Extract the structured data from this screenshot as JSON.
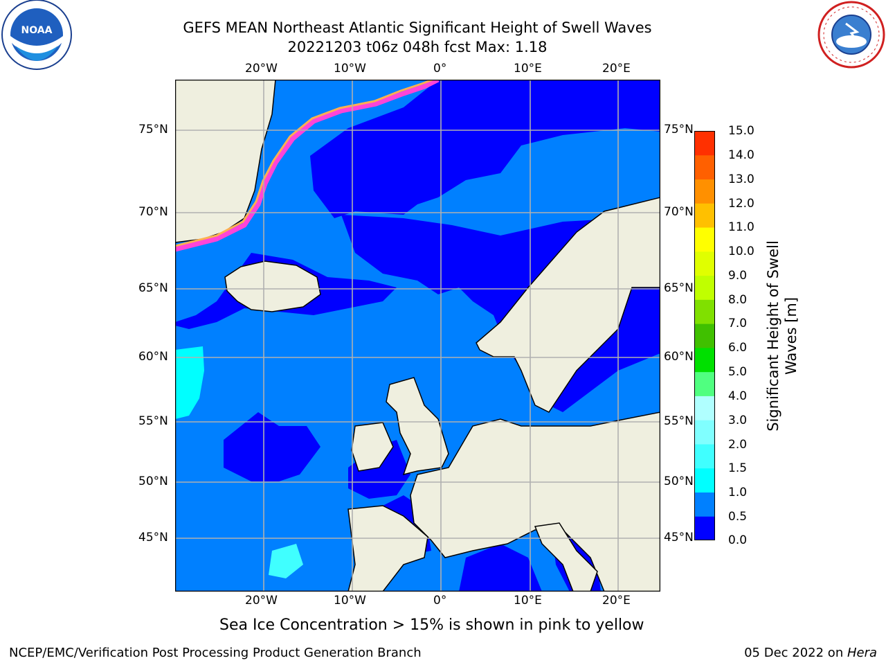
{
  "title": {
    "line1": "GEFS MEAN Northeast Atlantic Significant Height of Swell Waves",
    "line2": "20221203 t06z 048h fcst   Max: 1.18"
  },
  "logos": {
    "left": "noaa-logo-icon",
    "left_text": "NOAA",
    "right": "nws-logo-icon",
    "right_text": "NATIONAL WEATHER SERVICE"
  },
  "axes": {
    "lon_labels": [
      "20°W",
      "10°W",
      "0°",
      "10°E",
      "20°E"
    ],
    "lat_labels": [
      "75°N",
      "70°N",
      "65°N",
      "60°N",
      "55°N",
      "50°N",
      "45°N"
    ]
  },
  "colorbar": {
    "label_line1": "Significant Height of Swell",
    "label_line2": "Waves [m]",
    "ticks": [
      "15.0",
      "14.0",
      "13.0",
      "12.0",
      "11.0",
      "10.0",
      "9.0",
      "8.0",
      "7.0",
      "6.0",
      "5.0",
      "4.0",
      "3.0",
      "2.0",
      "1.5",
      "1.0",
      "0.5",
      "0.0"
    ],
    "colors": [
      "#0000ff",
      "#0080ff",
      "#00ffff",
      "#40ffff",
      "#80ffff",
      "#b0ffff",
      "#50ff80",
      "#00e000",
      "#40c000",
      "#80e000",
      "#c0ff00",
      "#e0ff00",
      "#ffff00",
      "#ffc000",
      "#ff9000",
      "#ff6000",
      "#ff3000",
      "#ff0000"
    ]
  },
  "colors": {
    "land": "#efefdf",
    "ocean_low": "#0000ff",
    "ocean_mid": "#0080ff",
    "ocean_high": "#00ffff",
    "grid": "#b0b0b0",
    "ice_pink": "#ff44d8",
    "ice_orange": "#ffb050",
    "ice_yellow": "#ffee40"
  },
  "note": "Sea Ice Concentration > 15% is shown in pink to yellow",
  "footer": {
    "left": "NCEP/EMC/Verification Post Processing Product Generation Branch",
    "right_date": "05 Dec 2022 on ",
    "right_host": "Hera"
  }
}
